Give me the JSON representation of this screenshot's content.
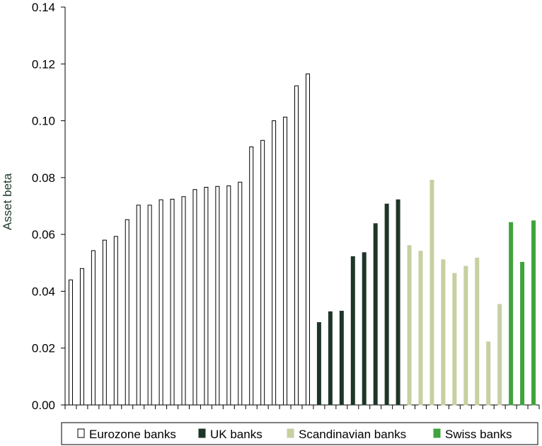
{
  "chart_data": {
    "type": "bar",
    "ylabel": "Asset beta",
    "ylim": [
      0,
      0.14
    ],
    "yticks": [
      "0.00",
      "0.02",
      "0.04",
      "0.06",
      "0.08",
      "0.10",
      "0.12",
      "0.14"
    ],
    "grid": false,
    "legend_position": "bottom",
    "series": [
      {
        "name": "Eurozone banks",
        "fill": "#ffffff",
        "stroke": "#000000",
        "values": [
          0.044,
          0.048,
          0.0543,
          0.058,
          0.0593,
          0.0652,
          0.0703,
          0.0703,
          0.0722,
          0.0724,
          0.0733,
          0.0758,
          0.0766,
          0.0769,
          0.0771,
          0.0784,
          0.0908,
          0.0931,
          0.1,
          0.1013,
          0.1123,
          0.1165
        ]
      },
      {
        "name": "UK banks",
        "fill": "#1e3628",
        "stroke": "#1e3628",
        "values": [
          0.029,
          0.0328,
          0.033,
          0.0522,
          0.0536,
          0.0638,
          0.0707,
          0.0722
        ]
      },
      {
        "name": "Scandinavian banks",
        "fill": "#c6d0a1",
        "stroke": "#c6d0a1",
        "values": [
          0.0561,
          0.0541,
          0.0791,
          0.0511,
          0.0463,
          0.0488,
          0.0517,
          0.0222,
          0.0354
        ]
      },
      {
        "name": "Swiss banks",
        "fill": "#3fa43c",
        "stroke": "#3fa43c",
        "values": [
          0.0642,
          0.0502,
          0.0648
        ]
      }
    ]
  }
}
